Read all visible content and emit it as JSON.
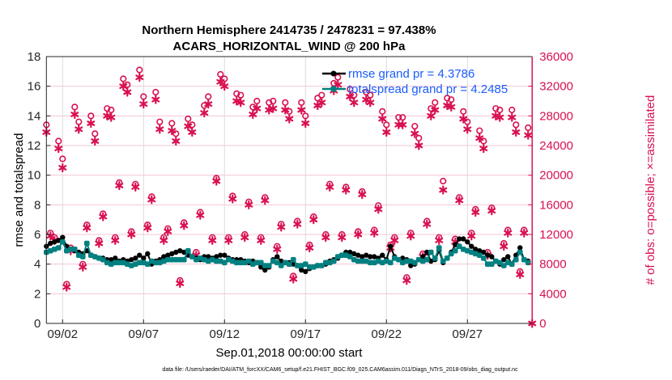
{
  "chart_data": {
    "type": "line",
    "title": [
      "Northern Hemisphere 2414735 / 2478231 = 97.438%",
      "ACARS_HORIZONTAL_WIND @ 200 hPa"
    ],
    "xlabel": "Sep.01,2018 00:00:00 start",
    "ylabel": "rmse and totalspread",
    "ylabel_right": "# of obs: o=possible; ×=assimilated",
    "footer": "data file: /Users/raeder/DAI/ATM_forcXX/CAM6_setup/f.e21.FHIST_BGC.f09_025.CAM6assim.011/Diags_NTrS_2018-09/obs_diag_output.nc",
    "x_unit": "days since Sep.01,2018 00:00:00",
    "xlim": [
      0,
      30
    ],
    "ylim": [
      0,
      18
    ],
    "ylim_right": [
      0,
      36000
    ],
    "x_ticks": [
      1,
      6,
      11,
      16,
      21,
      26
    ],
    "x_tick_labels": [
      "09/02",
      "09/07",
      "09/12",
      "09/17",
      "09/22",
      "09/27"
    ],
    "y_ticks": [
      "0",
      "2",
      "4",
      "6",
      "8",
      "10",
      "12",
      "14",
      "16",
      "18"
    ],
    "y_ticks_right": [
      "0",
      "4000",
      "8000",
      "12000",
      "16000",
      "20000",
      "24000",
      "28000",
      "32000",
      "36000"
    ],
    "grid": true,
    "legend_placement": "top-right",
    "time_step_days": 0.25,
    "colors": {
      "rmse": "#000000",
      "totalspread": "#008080",
      "obs": "#d8104f",
      "legend_text": "#1a5cff",
      "right_axis": "#d8104f"
    },
    "series": [
      {
        "name": "rmse grand pr = 4.3786",
        "axis": "left",
        "values": [
          5.2,
          5.4,
          5.5,
          5.6,
          5.8,
          5.2,
          5.0,
          4.9,
          4.8,
          4.7,
          4.9,
          4.6,
          4.5,
          4.4,
          4.4,
          4.3,
          4.3,
          4.4,
          4.2,
          4.3,
          4.2,
          4.3,
          4.4,
          4.6,
          4.4,
          4.7,
          4.0,
          4.2,
          4.3,
          4.5,
          4.6,
          4.7,
          4.8,
          4.9,
          4.8,
          4.6,
          4.5,
          4.4,
          4.3,
          4.5,
          4.5,
          4.4,
          4.5,
          4.6,
          4.6,
          4.4,
          4.3,
          4.3,
          4.3,
          4.2,
          4.1,
          4.2,
          4.1,
          3.8,
          3.6,
          3.8,
          4.3,
          4.5,
          4.2,
          4.1,
          4.1,
          4.0,
          3.9,
          3.6,
          3.5,
          3.7,
          3.8,
          3.9,
          3.9,
          4.0,
          4.2,
          4.3,
          4.4,
          4.6,
          4.8,
          4.8,
          4.7,
          4.6,
          4.5,
          4.6,
          4.5,
          4.5,
          4.4,
          4.6,
          4.3,
          5.2,
          4.5,
          4.3,
          4.4,
          4.3,
          3.9,
          4.0,
          4.3,
          4.5,
          4.8,
          4.2,
          4.3,
          4.9,
          4.1,
          4.4,
          4.8,
          5.3,
          5.7,
          5.7,
          5.5,
          5.2,
          5.0,
          4.9,
          4.8,
          4.6,
          4.5,
          4.2,
          4.0,
          4.3,
          4.5,
          4.0,
          4.6,
          5.1,
          4.3,
          4.2
        ]
      },
      {
        "name": "totalspread grand pr = 4.2485",
        "axis": "left",
        "values": [
          4.8,
          4.9,
          5.0,
          5.1,
          5.5,
          4.9,
          5.0,
          5.0,
          4.6,
          4.5,
          5.4,
          4.6,
          4.5,
          4.4,
          4.3,
          4.1,
          4.0,
          4.1,
          4.1,
          4.1,
          4.0,
          3.9,
          4.0,
          4.1,
          4.1,
          4.0,
          4.2,
          4.1,
          4.1,
          4.2,
          4.3,
          4.3,
          4.3,
          4.3,
          4.3,
          4.9,
          4.5,
          4.3,
          4.4,
          4.3,
          4.2,
          4.3,
          4.2,
          4.2,
          4.1,
          4.3,
          4.2,
          4.1,
          4.1,
          4.1,
          4.2,
          4.0,
          4.1,
          4.1,
          3.9,
          3.9,
          4.2,
          4.1,
          3.9,
          4.1,
          4.0,
          4.3,
          3.9,
          3.9,
          4.0,
          3.8,
          3.8,
          3.9,
          3.9,
          4.1,
          4.1,
          4.2,
          4.5,
          4.6,
          4.6,
          4.5,
          4.3,
          4.2,
          4.2,
          4.2,
          4.1,
          4.1,
          4.2,
          4.1,
          4.2,
          4.1,
          4.4,
          4.3,
          4.1,
          4.2,
          4.2,
          4.1,
          4.3,
          4.2,
          4.3,
          4.8,
          4.4,
          5.1,
          4.2,
          4.4,
          4.7,
          4.9,
          5.2,
          5.0,
          4.9,
          4.8,
          4.7,
          4.6,
          4.4,
          4.0,
          4.0,
          4.2,
          4.1,
          3.9,
          4.1,
          4.0,
          4.3,
          4.8,
          4.3,
          4.1
        ]
      },
      {
        "name": "possible",
        "axis": "right",
        "marker": "o",
        "values": [
          26800,
          12200,
          11600,
          24600,
          22200,
          5300,
          10200,
          29200,
          27200,
          8000,
          13300,
          28000,
          25600,
          11200,
          14800,
          29000,
          28800,
          11600,
          19000,
          33000,
          32200,
          12400,
          18800,
          34200,
          30600,
          13300,
          17100,
          31200,
          27200,
          11600,
          12800,
          27000,
          25600,
          5800,
          13600,
          27600,
          26800,
          9600,
          15000,
          29400,
          30600,
          11600,
          19600,
          33600,
          33000,
          11600,
          17200,
          31000,
          30800,
          12000,
          16400,
          29200,
          30000,
          11600,
          17000,
          29800,
          30000,
          10400,
          13400,
          29800,
          28600,
          6400,
          13800,
          29800,
          28000,
          10600,
          14400,
          30400,
          30800,
          12000,
          18800,
          32400,
          33200,
          12000,
          18400,
          31600,
          30800,
          12400,
          17800,
          31200,
          30800,
          12600,
          15900,
          28600,
          26800,
          10600,
          11600,
          27800,
          27800,
          6200,
          12200,
          26600,
          25000,
          9400,
          13800,
          29000,
          29800,
          11600,
          19200,
          30400,
          30200,
          11400,
          17000,
          28600,
          27200,
          12200,
          15400,
          26000,
          24600,
          9600,
          15600,
          29000,
          28800,
          10800,
          12600,
          28800,
          26800,
          7000,
          12600,
          26400
        ]
      },
      {
        "name": "assimilated",
        "axis": "right",
        "marker": "*",
        "values": [
          25800,
          11800,
          11200,
          23600,
          21000,
          4900,
          9800,
          28200,
          26200,
          7600,
          12900,
          27000,
          24600,
          10800,
          14400,
          28000,
          27800,
          11200,
          18600,
          32000,
          31200,
          12000,
          18400,
          33200,
          29600,
          12900,
          16700,
          30200,
          26200,
          11200,
          12400,
          26000,
          24600,
          5400,
          13200,
          26600,
          25800,
          9200,
          14600,
          28400,
          29600,
          11200,
          19200,
          32600,
          32000,
          11200,
          16800,
          30000,
          29800,
          11600,
          16000,
          28200,
          29000,
          11200,
          16600,
          28800,
          29000,
          10000,
          13000,
          28800,
          27600,
          6000,
          13400,
          28800,
          27000,
          10200,
          14000,
          29400,
          29800,
          11600,
          18400,
          31400,
          32200,
          11600,
          18000,
          30600,
          29800,
          12000,
          17400,
          30200,
          29800,
          12200,
          15400,
          27600,
          25800,
          10200,
          11200,
          26800,
          26800,
          5800,
          11800,
          25600,
          24000,
          9000,
          13400,
          28000,
          28800,
          11200,
          18000,
          29400,
          29200,
          11000,
          16600,
          27600,
          26200,
          11800,
          15000,
          25000,
          23600,
          9200,
          15200,
          28000,
          27800,
          10400,
          12200,
          27800,
          25800,
          6600,
          12200,
          25400,
          0
        ]
      }
    ]
  }
}
